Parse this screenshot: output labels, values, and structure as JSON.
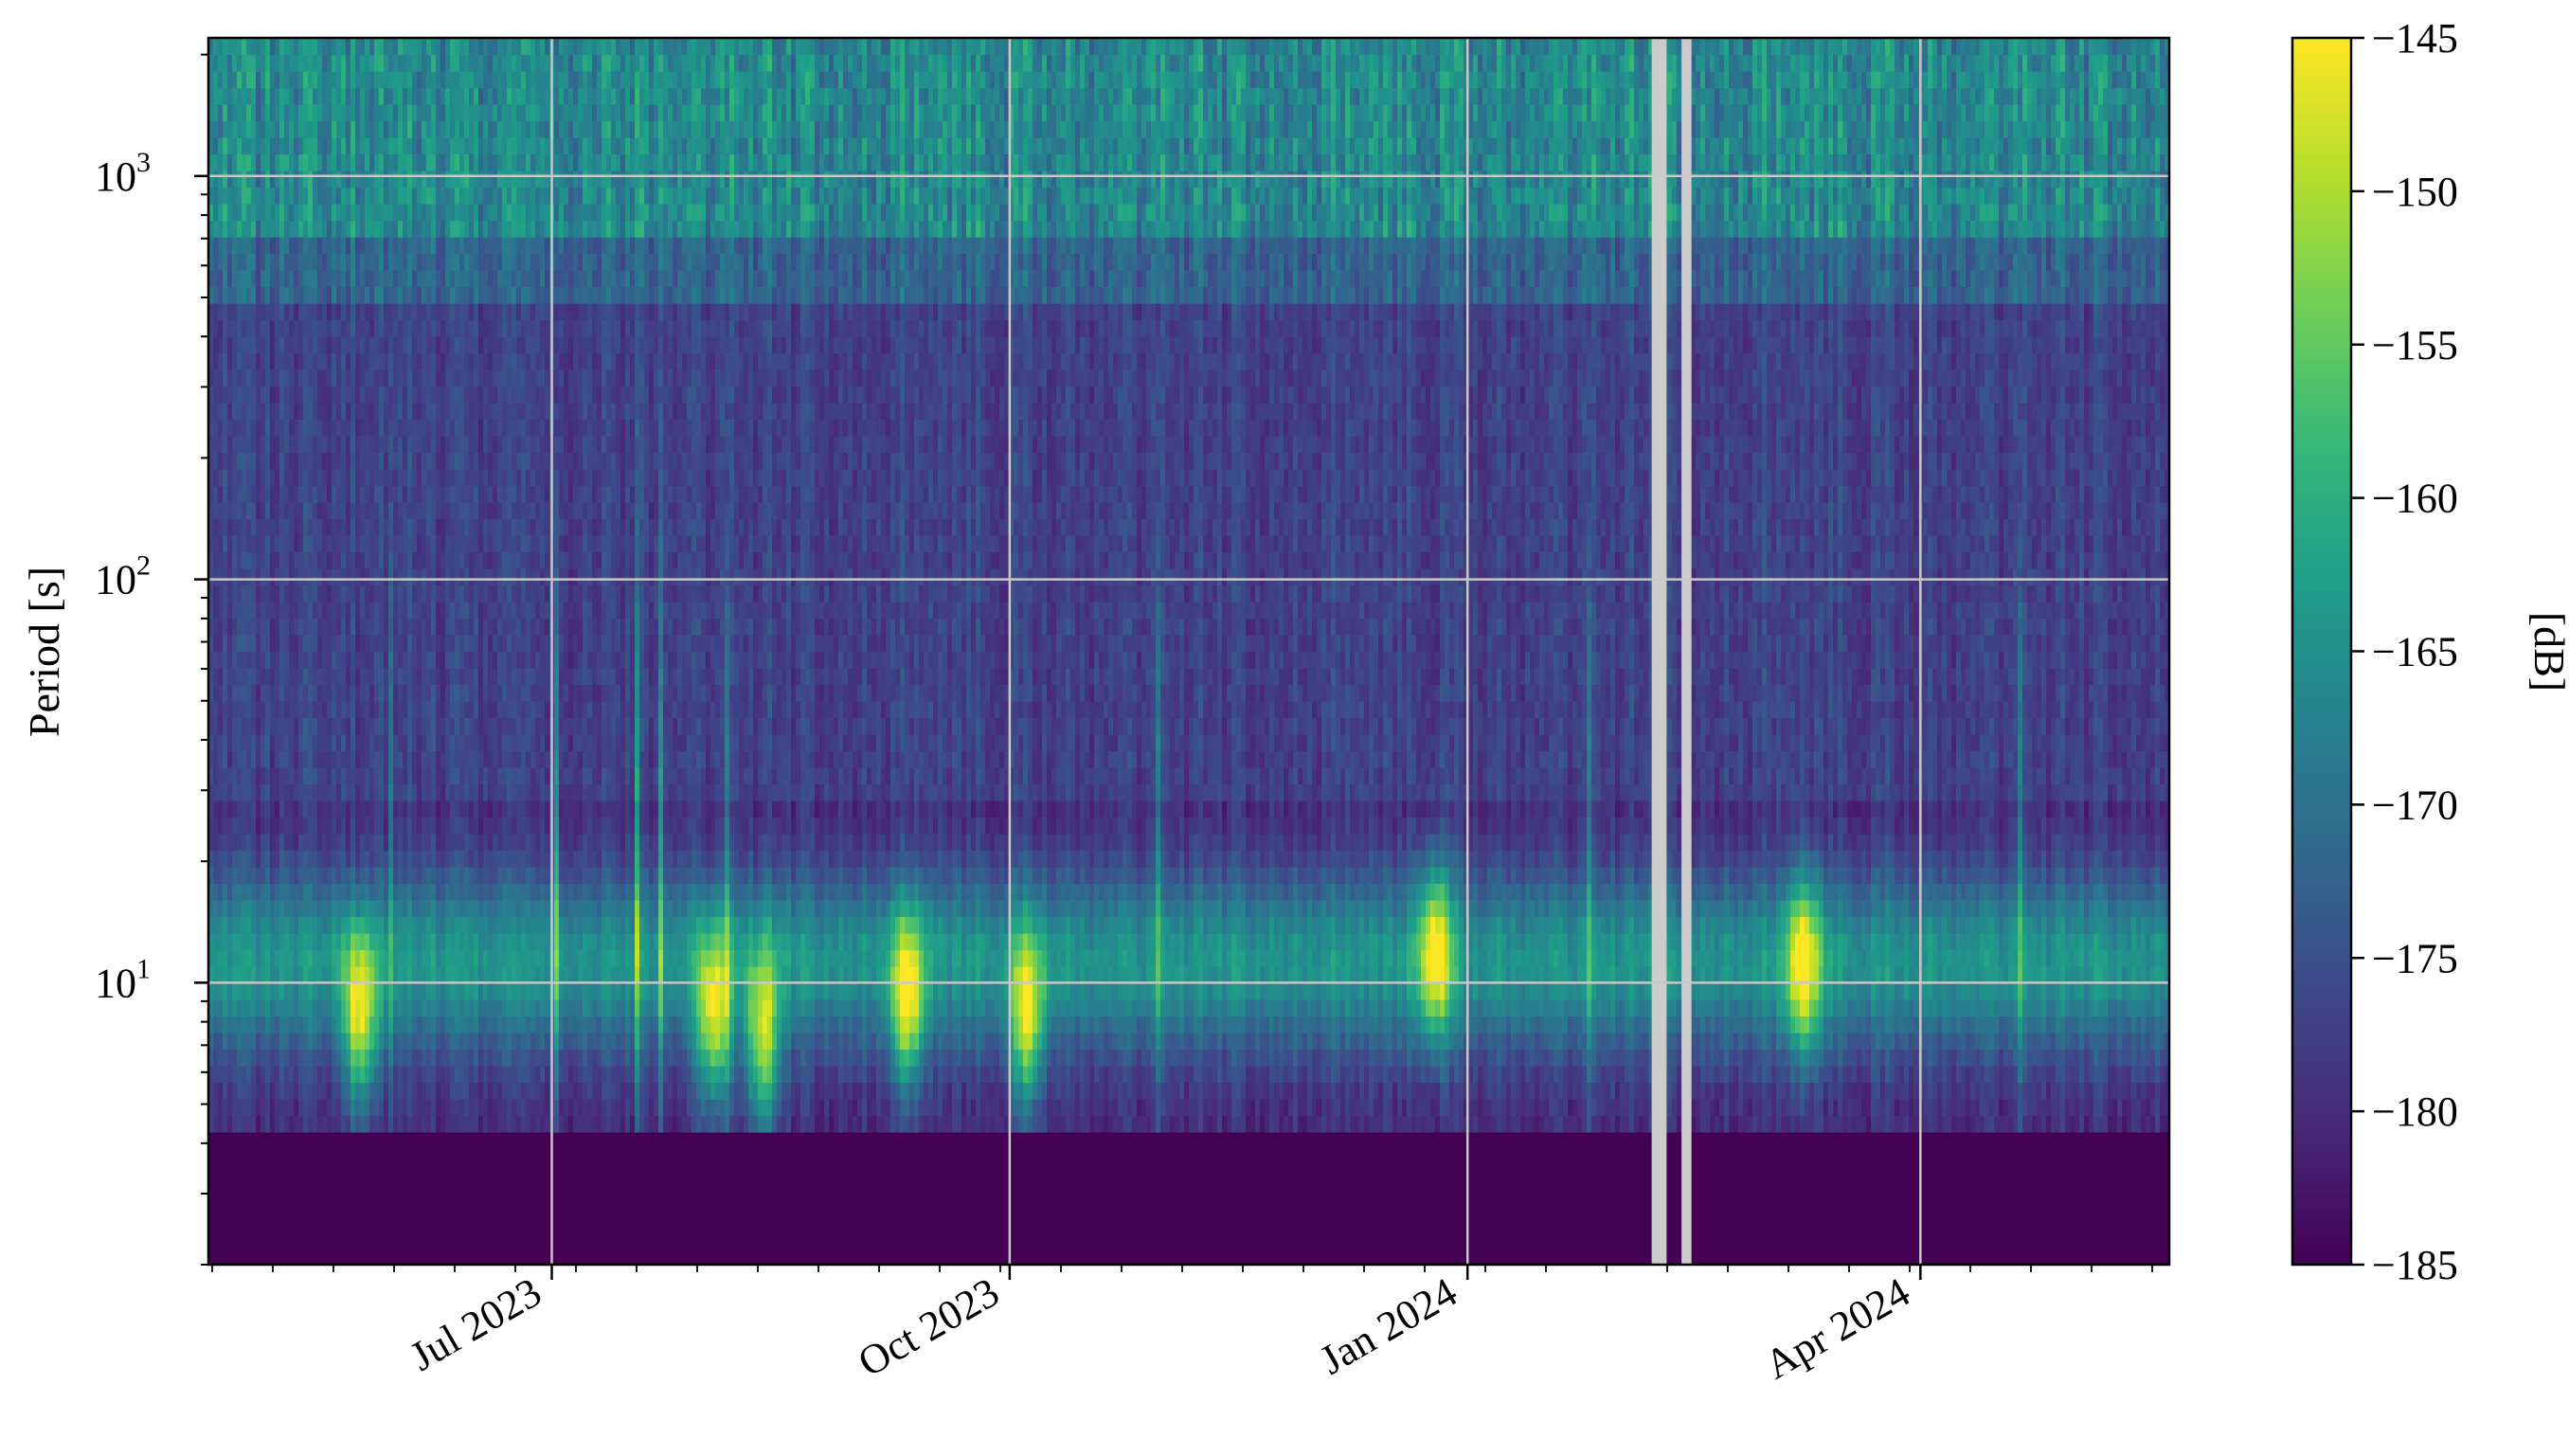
{
  "chart_data": {
    "type": "heatmap",
    "title": "",
    "xlabel": "",
    "ylabel": "Period [s]",
    "y_scale": "log",
    "ylim": [
      2,
      2200
    ],
    "x_range": [
      "2023-04-23",
      "2024-05-21"
    ],
    "x_ticks": [
      {
        "date": "2023-07-01",
        "label": "Jul 2023"
      },
      {
        "date": "2023-10-01",
        "label": "Oct 2023"
      },
      {
        "date": "2024-01-01",
        "label": "Jan 2024"
      },
      {
        "date": "2024-04-01",
        "label": "Apr 2024"
      }
    ],
    "y_major_ticks": [
      {
        "value": 10,
        "base": "10",
        "exp": "1"
      },
      {
        "value": 100,
        "base": "10",
        "exp": "2"
      },
      {
        "value": 1000,
        "base": "10",
        "exp": "3"
      }
    ],
    "grid": true,
    "colormap": "viridis",
    "colorbar": {
      "label": "[dB]",
      "min": -185,
      "max": -145,
      "ticks": [
        "−145",
        "−150",
        "−155",
        "−160",
        "−165",
        "−170",
        "−175",
        "−180",
        "−185"
      ]
    },
    "data_gaps": [
      {
        "start": "2024-02-07",
        "end": "2024-02-10"
      },
      {
        "start": "2024-02-13",
        "end": "2024-02-15"
      }
    ],
    "storm_events": [
      {
        "date": "2023-05-23",
        "min_period_s": 6,
        "peak_period_s": 8,
        "level_db": -146
      },
      {
        "date": "2023-08-02",
        "min_period_s": 5,
        "peak_period_s": 8,
        "level_db": -149
      },
      {
        "date": "2023-08-12",
        "min_period_s": 5,
        "peak_period_s": 7,
        "level_db": -146
      },
      {
        "date": "2023-09-10",
        "min_period_s": 5,
        "peak_period_s": 9,
        "level_db": -155
      },
      {
        "date": "2023-10-04",
        "min_period_s": 5,
        "peak_period_s": 8,
        "level_db": -150
      },
      {
        "date": "2023-12-25",
        "min_period_s": 5,
        "peak_period_s": 12,
        "level_db": -151
      },
      {
        "date": "2024-03-08",
        "min_period_s": 6,
        "peak_period_s": 11,
        "level_db": -157
      }
    ]
  },
  "colors": {
    "viridis": [
      "#440154",
      "#482878",
      "#3e4989",
      "#31688e",
      "#26828e",
      "#1f9e89",
      "#35b779",
      "#6ece58",
      "#b5de2b",
      "#fde725"
    ],
    "grid": "#c8c8c8",
    "gap": "#cccccc",
    "frame": "#000000"
  }
}
